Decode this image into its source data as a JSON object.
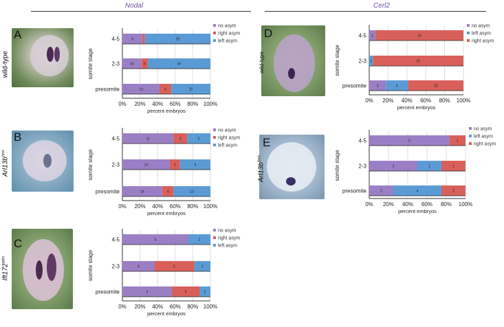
{
  "column_titles": {
    "left": "Nodal",
    "right": "Cerl2"
  },
  "panels": [
    {
      "letter": "A",
      "genotype": "wild-type",
      "genotype_sup": ""
    },
    {
      "letter": "B",
      "genotype": "Arl13b",
      "genotype_sup": "hnn"
    },
    {
      "letter": "C",
      "genotype": "Ift172",
      "genotype_sup": "wim"
    },
    {
      "letter": "D",
      "genotype": "wild-type",
      "genotype_sup": ""
    },
    {
      "letter": "E",
      "genotype": "Arl13b",
      "genotype_sup": "hnn"
    }
  ],
  "colors": {
    "no_asym": "#9b7fc4",
    "right_asym": "#d9605a",
    "left_asym": "#5b9bd5"
  },
  "chart_data": [
    {
      "type": "bar",
      "orientation": "horizontal",
      "stacked": true,
      "percent": true,
      "categories": [
        "4-5",
        "2-3",
        "presomite"
      ],
      "xlabel": "percent embryos",
      "ylabel": "somite stage",
      "xticks": [
        "0%",
        "20%",
        "40%",
        "60%",
        "80%",
        "100%"
      ],
      "series": [
        {
          "name": "no asym",
          "color": "#9b7fc4",
          "values": [
            9,
            15,
            19
          ]
        },
        {
          "name": "right asym",
          "color": "#d9605a",
          "values": [
            1,
            5,
            6
          ]
        },
        {
          "name": "left asym",
          "color": "#5b9bd5",
          "values": [
            29,
            49,
            20
          ]
        }
      ]
    },
    {
      "type": "bar",
      "orientation": "horizontal",
      "stacked": true,
      "percent": true,
      "categories": [
        "4-5",
        "2-3",
        "presomite"
      ],
      "xlabel": "percent embryos",
      "ylabel": "somite stage",
      "xticks": [
        "0%",
        "20%",
        "40%",
        "60%",
        "80%",
        "100%"
      ],
      "series": [
        {
          "name": "no asym",
          "color": "#9b7fc4",
          "values": [
            11,
            14,
            14
          ]
        },
        {
          "name": "right asym",
          "color": "#d9605a",
          "values": [
            3,
            3,
            4
          ]
        },
        {
          "name": "left asym",
          "color": "#5b9bd5",
          "values": [
            5,
            9,
            13
          ]
        }
      ]
    },
    {
      "type": "bar",
      "orientation": "horizontal",
      "stacked": true,
      "percent": true,
      "categories": [
        "4-5",
        "2-3",
        "presomite"
      ],
      "xlabel": "percent embryos",
      "ylabel": "somite stage",
      "xticks": [
        "0%",
        "20%",
        "40%",
        "60%",
        "80%",
        "100%"
      ],
      "series": [
        {
          "name": "no asym",
          "color": "#9b7fc4",
          "values": [
            6,
            4,
            9
          ]
        },
        {
          "name": "right asym",
          "color": "#d9605a",
          "values": [
            0,
            5,
            5
          ]
        },
        {
          "name": "left asym",
          "color": "#5b9bd5",
          "values": [
            2,
            2,
            2
          ]
        }
      ]
    },
    {
      "type": "bar",
      "orientation": "horizontal",
      "stacked": true,
      "percent": true,
      "categories": [
        "4-5",
        "2-3",
        "presomite"
      ],
      "xlabel": "percent embryos",
      "ylabel": "somite stage",
      "xticks": [
        "0%",
        "20%",
        "40%",
        "60%",
        "80%",
        "100%"
      ],
      "series": [
        {
          "name": "no asym",
          "color": "#9b7fc4",
          "values": [
            1,
            0,
            3
          ]
        },
        {
          "name": "left asym",
          "color": "#5b9bd5",
          "values": [
            0,
            1,
            4
          ]
        },
        {
          "name": "right asym",
          "color": "#d9605a",
          "values": [
            14,
            25,
            10
          ]
        }
      ]
    },
    {
      "type": "bar",
      "orientation": "horizontal",
      "stacked": true,
      "percent": true,
      "categories": [
        "4-5",
        "2-3",
        "presomite"
      ],
      "xlabel": "percent embryos",
      "ylabel": "somite stage",
      "xticks": [
        "0%",
        "20%",
        "40%",
        "60%",
        "80%",
        "100%"
      ],
      "series": [
        {
          "name": "no asym",
          "color": "#9b7fc4",
          "values": [
            5,
            2,
            2
          ]
        },
        {
          "name": "left asym",
          "color": "#5b9bd5",
          "values": [
            0,
            1,
            4
          ]
        },
        {
          "name": "right asym",
          "color": "#d9605a",
          "values": [
            1,
            1,
            2
          ]
        }
      ]
    }
  ]
}
